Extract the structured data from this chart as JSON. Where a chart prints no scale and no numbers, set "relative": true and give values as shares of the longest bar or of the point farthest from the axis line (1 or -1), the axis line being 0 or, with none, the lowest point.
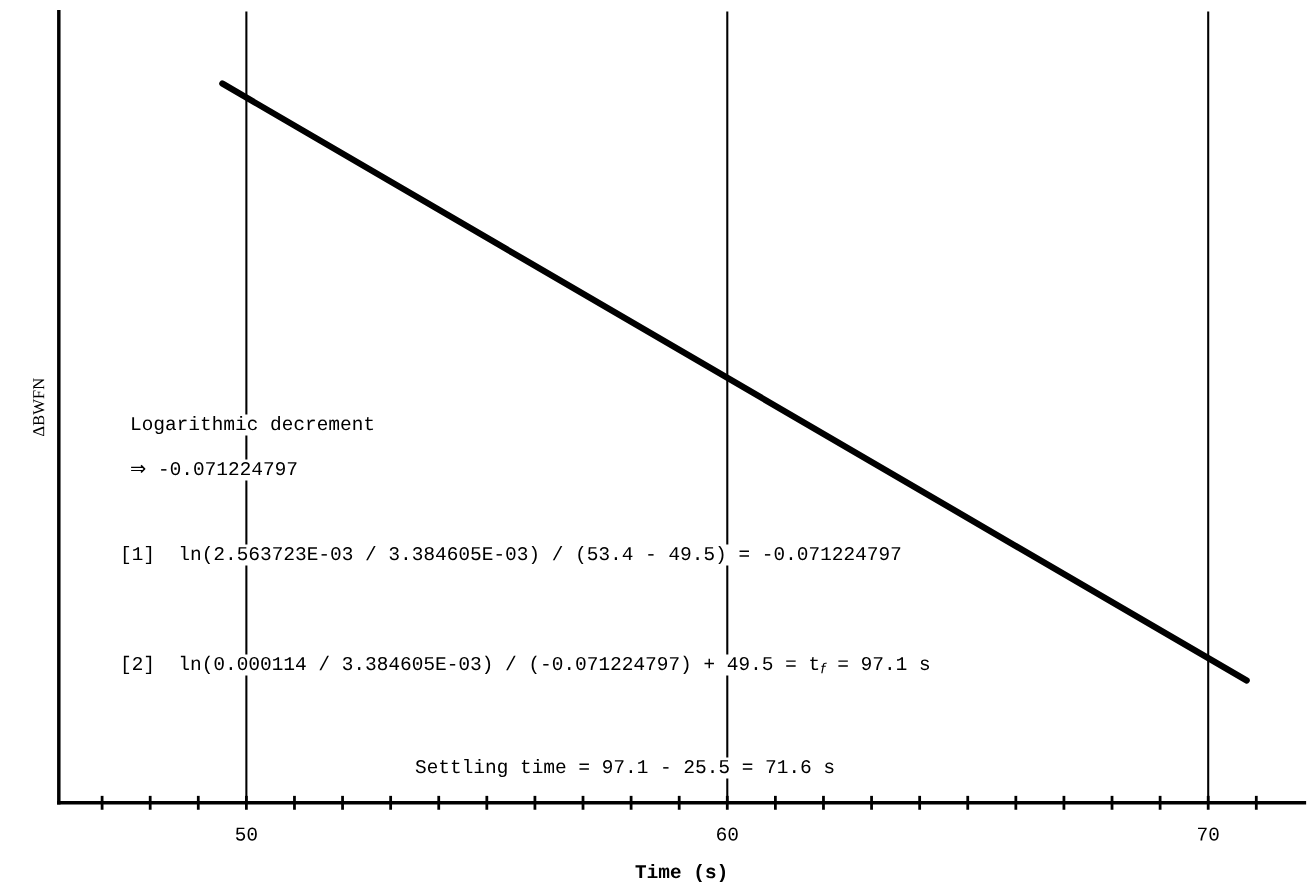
{
  "chart_data": {
    "type": "line",
    "relative": true,
    "xlabel": "Time (s)",
    "ylabel": "ΔBWFN",
    "xlim": [
      46.1,
      72.0
    ],
    "xticks": [
      {
        "value": 47,
        "label": null
      },
      {
        "value": 48,
        "label": null
      },
      {
        "value": 49,
        "label": null
      },
      50,
      {
        "value": 51,
        "label": null
      },
      {
        "value": 52,
        "label": null
      },
      {
        "value": 53,
        "label": null
      },
      {
        "value": 54,
        "label": null
      },
      {
        "value": 55,
        "label": null
      },
      {
        "value": 56,
        "label": null
      },
      {
        "value": 57,
        "label": null
      },
      {
        "value": 58,
        "label": null
      },
      {
        "value": 59,
        "label": null
      },
      60,
      {
        "value": 61,
        "label": null
      },
      {
        "value": 62,
        "label": null
      },
      {
        "value": 63,
        "label": null
      },
      {
        "value": 64,
        "label": null
      },
      {
        "value": 65,
        "label": null
      },
      {
        "value": 66,
        "label": null
      },
      {
        "value": 67,
        "label": null
      },
      {
        "value": 68,
        "label": null
      },
      {
        "value": 69,
        "label": null
      },
      70,
      {
        "value": 71,
        "label": null
      }
    ],
    "tick_labels": "x",
    "ref_lines": [
      {
        "axis": "x",
        "value": 50
      },
      {
        "axis": "x",
        "value": 60
      },
      {
        "axis": "x",
        "value": 70
      }
    ],
    "series": [
      {
        "color": "#000000",
        "x": [
          49.5,
          70.8
        ],
        "values": [
          1,
          0.17
        ]
      }
    ],
    "annotations": [
      "Logarithmic decrement",
      "⇒ -0.071224797",
      "[1]  ln(2.563723E-03 / 3.384605E-03) / (53.4 - 49.5) = -0.071224797",
      "[2]  ln(0.000114 / 3.384605E-03) / (-0.071224797) + 49.5 = t$_{f}$ = 97.1 s",
      "Settling time = 97.1 - 25.5 = 71.6 s"
    ]
  }
}
